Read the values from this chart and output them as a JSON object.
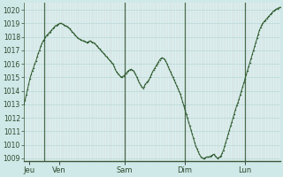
{
  "background_color": "#cfe8e8",
  "plot_bg_color": "#daf0f0",
  "grid_color_h": "#b8d8d8",
  "grid_color_v_fine": "#d4c8c8",
  "vline_color": "#4a6a4a",
  "line_color": "#2d5a2d",
  "marker_color": "#2d5a2d",
  "ylim": [
    1008.8,
    1020.5
  ],
  "yticks": [
    1009,
    1010,
    1011,
    1012,
    1013,
    1014,
    1015,
    1016,
    1017,
    1018,
    1019,
    1020
  ],
  "ylabel_fontsize": 5.5,
  "xtick_labels": [
    "Jeu",
    "Ven",
    "Sam",
    "Dim",
    "Lun"
  ],
  "xtick_positions": [
    4,
    28,
    80,
    128,
    176
  ],
  "vline_positions": [
    16,
    80,
    128,
    176
  ],
  "xlim": [
    0,
    204
  ],
  "pressure_data": [
    1013.0,
    1013.3,
    1013.7,
    1014.1,
    1014.5,
    1014.9,
    1015.2,
    1015.5,
    1015.7,
    1016.0,
    1016.2,
    1016.5,
    1016.8,
    1017.0,
    1017.3,
    1017.5,
    1017.7,
    1017.8,
    1018.0,
    1018.1,
    1018.2,
    1018.3,
    1018.4,
    1018.5,
    1018.6,
    1018.7,
    1018.8,
    1018.85,
    1018.9,
    1018.95,
    1019.0,
    1019.0,
    1018.95,
    1018.9,
    1018.85,
    1018.8,
    1018.75,
    1018.7,
    1018.6,
    1018.5,
    1018.4,
    1018.3,
    1018.2,
    1018.1,
    1018.0,
    1017.9,
    1017.85,
    1017.8,
    1017.75,
    1017.7,
    1017.7,
    1017.65,
    1017.6,
    1017.6,
    1017.65,
    1017.7,
    1017.65,
    1017.6,
    1017.55,
    1017.5,
    1017.4,
    1017.3,
    1017.2,
    1017.1,
    1017.0,
    1016.9,
    1016.8,
    1016.7,
    1016.6,
    1016.5,
    1016.4,
    1016.3,
    1016.2,
    1016.1,
    1016.0,
    1015.8,
    1015.6,
    1015.4,
    1015.3,
    1015.2,
    1015.1,
    1015.0,
    1015.05,
    1015.1,
    1015.2,
    1015.3,
    1015.4,
    1015.5,
    1015.55,
    1015.6,
    1015.55,
    1015.5,
    1015.35,
    1015.2,
    1015.0,
    1014.8,
    1014.6,
    1014.45,
    1014.3,
    1014.2,
    1014.3,
    1014.5,
    1014.6,
    1014.7,
    1014.8,
    1015.0,
    1015.2,
    1015.4,
    1015.55,
    1015.7,
    1015.85,
    1016.0,
    1016.15,
    1016.3,
    1016.4,
    1016.45,
    1016.4,
    1016.35,
    1016.2,
    1016.0,
    1015.8,
    1015.6,
    1015.4,
    1015.2,
    1015.0,
    1014.8,
    1014.6,
    1014.4,
    1014.2,
    1014.0,
    1013.8,
    1013.5,
    1013.2,
    1012.9,
    1012.6,
    1012.3,
    1012.0,
    1011.7,
    1011.4,
    1011.1,
    1010.8,
    1010.5,
    1010.2,
    1009.9,
    1009.7,
    1009.5,
    1009.3,
    1009.15,
    1009.05,
    1009.0,
    1009.0,
    1009.05,
    1009.1,
    1009.1,
    1009.1,
    1009.15,
    1009.2,
    1009.25,
    1009.3,
    1009.2,
    1009.1,
    1009.0,
    1009.05,
    1009.1,
    1009.2,
    1009.4,
    1009.6,
    1009.9,
    1010.2,
    1010.5,
    1010.8,
    1011.1,
    1011.4,
    1011.7,
    1012.0,
    1012.3,
    1012.6,
    1012.9,
    1013.1,
    1013.4,
    1013.7,
    1014.0,
    1014.3,
    1014.6,
    1014.9,
    1015.2,
    1015.5,
    1015.8,
    1016.1,
    1016.4,
    1016.7,
    1017.0,
    1017.3,
    1017.6,
    1017.9,
    1018.2,
    1018.5,
    1018.7,
    1018.9,
    1019.05,
    1019.15,
    1019.25,
    1019.35,
    1019.45,
    1019.55,
    1019.65,
    1019.75,
    1019.85,
    1019.92,
    1020.0,
    1020.05,
    1020.1,
    1020.15,
    1020.2
  ]
}
